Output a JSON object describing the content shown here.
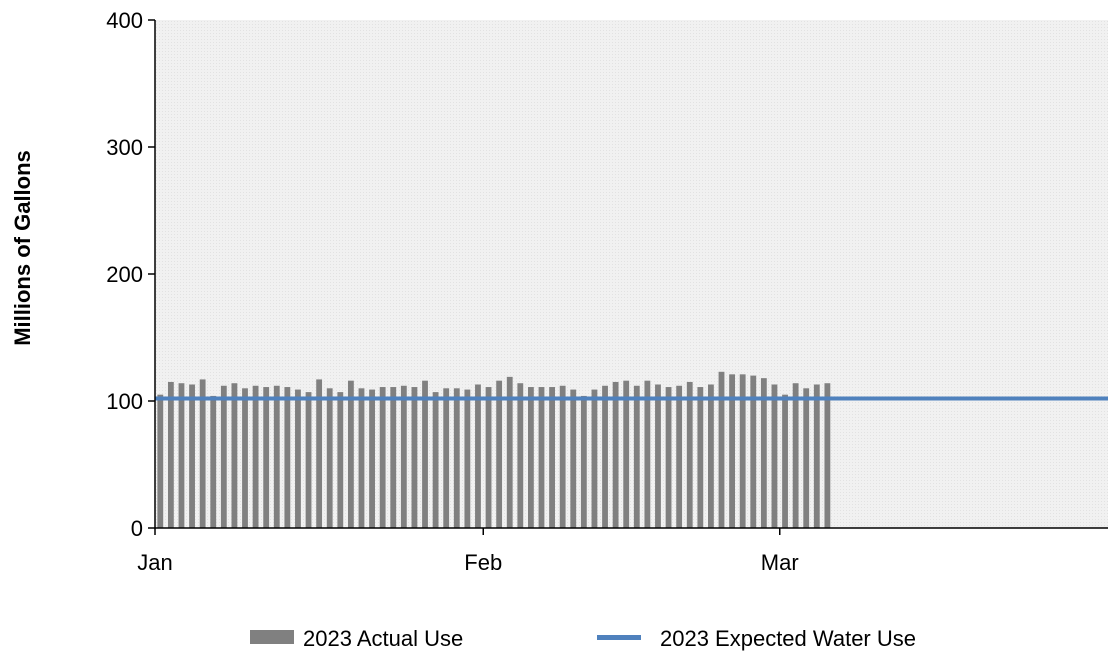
{
  "chart_data": {
    "type": "bar",
    "title": "",
    "xlabel": "",
    "ylabel": "Millions of Gallons",
    "ylim": [
      0,
      400
    ],
    "yticks": [
      "0",
      "100",
      "200",
      "300",
      "400"
    ],
    "x_axis": {
      "start": "2023-01-01",
      "end": "2023-03-31",
      "tick_labels": [
        {
          "label": "Jan",
          "date": "2023-01-01"
        },
        {
          "label": "Feb",
          "date": "2023-02-01"
        },
        {
          "label": "Mar",
          "date": "2023-03-01"
        }
      ]
    },
    "grid": false,
    "legend_position": "bottom",
    "colors": {
      "bars": "#808080",
      "line": "#4f81bd",
      "plot_background": "#eeeeee",
      "axis": "#000000"
    },
    "series": [
      {
        "name": "2023 Actual Use",
        "kind": "bar",
        "start_date": "2023-01-01",
        "values": [
          105,
          115,
          114,
          113,
          117,
          104,
          112,
          114,
          110,
          112,
          111,
          112,
          111,
          109,
          107,
          117,
          110,
          107,
          116,
          110,
          109,
          111,
          111,
          112,
          111,
          116,
          107,
          110,
          110,
          109,
          113,
          111,
          116,
          119,
          114,
          111,
          111,
          111,
          112,
          109,
          104,
          109,
          112,
          115,
          116,
          112,
          116,
          113,
          111,
          112,
          115,
          111,
          113,
          123,
          121,
          121,
          120,
          118,
          113,
          105,
          114,
          110,
          113,
          114
        ]
      },
      {
        "name": "2023 Expected Water Use",
        "kind": "line",
        "x": [
          "2023-01-01",
          "2023-03-31"
        ],
        "values": [
          102,
          102
        ]
      }
    ]
  }
}
